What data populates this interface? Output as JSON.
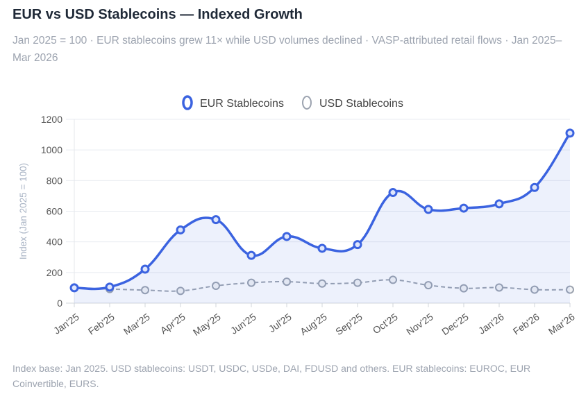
{
  "title": "EUR vs USD Stablecoins — Indexed Growth",
  "subtitle": "Jan 2025 = 100 · EUR stablecoins grew 11× while USD volumes declined · VASP-attributed retail flows · Jan 2025–Mar 2026",
  "footer": "Index base: Jan 2025. USD stablecoins: USDT, USDC, USDe, DAI, FDUSD and others. EUR stablecoins: EUROC, EUR Coinvertible, EURS.",
  "chart_data": {
    "type": "line",
    "title": "EUR vs USD Stablecoins — Indexed Growth",
    "ylabel": "Index (Jan 2025 = 100)",
    "xlabel": "",
    "ylim": [
      0,
      1200
    ],
    "yticks": [
      "0",
      "200",
      "400",
      "600",
      "800",
      "1000",
      "1200"
    ],
    "grid": true,
    "legend_placement": "top",
    "categories": [
      "Jan'25",
      "Feb'25",
      "Mar'25",
      "Apr'25",
      "May'25",
      "Jun'25",
      "Jul'25",
      "Aug'25",
      "Sep'25",
      "Oct'25",
      "Nov'25",
      "Dec'25",
      "Jan'26",
      "Feb'26",
      "Mar'26"
    ],
    "series": [
      {
        "name": "EUR Stablecoins",
        "color": "#3b63e0",
        "style": "solid, filled",
        "values": [
          100,
          105,
          222,
          478,
          545,
          312,
          435,
          358,
          382,
          722,
          612,
          620,
          648,
          755,
          1110
        ]
      },
      {
        "name": "USD Stablecoins",
        "color": "#9ca3af",
        "style": "dashed",
        "values": [
          100,
          92,
          85,
          80,
          113,
          133,
          140,
          128,
          133,
          152,
          117,
          97,
          102,
          88,
          88
        ]
      }
    ]
  }
}
